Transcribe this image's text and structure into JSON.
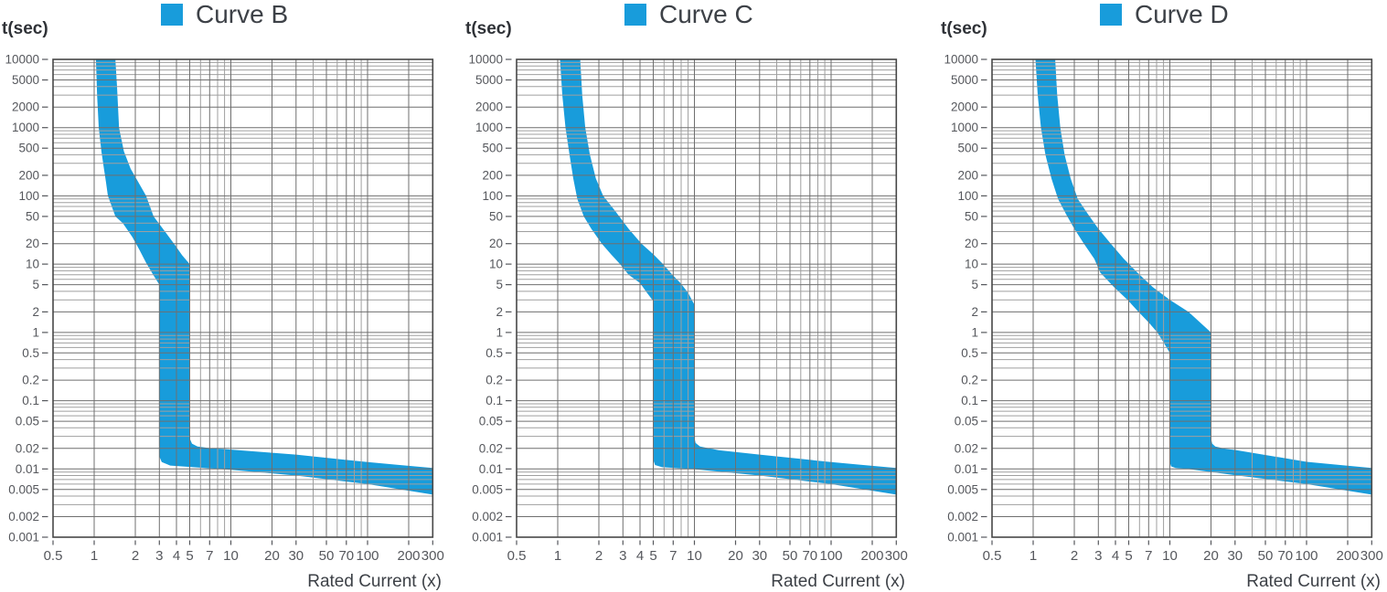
{
  "style": {
    "background": "#ffffff",
    "band_color": "#189CDB",
    "grid_minor": "#9f9f9f",
    "grid_major": "#6f6f6f",
    "axis_color": "#474747",
    "tick_color": "#55575c",
    "tick_text": "#55575c",
    "legend_text": "#3d4147",
    "ylabel_text": "#2f3237"
  },
  "chart_data": [
    {
      "type": "area",
      "title": "Curve B",
      "legend_label": "Curve B",
      "xlabel": "Rated Current (x)",
      "ylabel": "t(sec)",
      "x_scale": "log",
      "y_scale": "log",
      "xlim": [
        0.5,
        300
      ],
      "ylim": [
        0.001,
        10000
      ],
      "grid": "on (log decades with minor lines)",
      "x_tick_values": [
        0.5,
        1,
        2,
        3,
        4,
        5,
        7,
        10,
        20,
        30,
        50,
        70,
        100,
        200,
        300
      ],
      "x_tick_labels": [
        "0.5",
        "1",
        "2",
        "3",
        "4",
        "5",
        "7",
        "10",
        "20",
        "30",
        "50",
        "70",
        "100",
        "200",
        "300"
      ],
      "y_tick_values": [
        10000,
        5000,
        2000,
        1000,
        500,
        200,
        100,
        50,
        20,
        10,
        5,
        2,
        1,
        0.5,
        0.2,
        0.1,
        0.05,
        0.02,
        0.01,
        0.005,
        0.002,
        0.001
      ],
      "y_tick_labels": [
        "10000",
        "5000",
        "2000",
        "1000",
        "500",
        "200",
        "100",
        "50",
        "20",
        "10",
        "5",
        "2",
        "1",
        "0.5",
        "0.2",
        "0.1",
        "0.05",
        "0.02",
        "0.01",
        "0.005",
        "0.002",
        "0.001"
      ],
      "band_upper": [
        [
          1.43,
          10000
        ],
        [
          1.47,
          4000
        ],
        [
          1.52,
          1000
        ],
        [
          1.65,
          450
        ],
        [
          1.85,
          250
        ],
        [
          2.1,
          160
        ],
        [
          2.4,
          100
        ],
        [
          2.72,
          50
        ],
        [
          3.3,
          30
        ],
        [
          3.9,
          19
        ],
        [
          4.4,
          13.5
        ],
        [
          5.0,
          10
        ],
        [
          5.0,
          0.028
        ],
        [
          5.2,
          0.0235
        ],
        [
          5.7,
          0.0213
        ],
        [
          7.0,
          0.0202
        ],
        [
          10,
          0.0192
        ],
        [
          30,
          0.0162
        ],
        [
          100,
          0.0126
        ],
        [
          300,
          0.0103
        ]
      ],
      "band_lower": [
        [
          1.03,
          10000
        ],
        [
          1.05,
          3000
        ],
        [
          1.08,
          1000
        ],
        [
          1.13,
          450
        ],
        [
          1.18,
          250
        ],
        [
          1.22,
          160
        ],
        [
          1.26,
          100
        ],
        [
          1.43,
          50
        ],
        [
          1.62,
          40
        ],
        [
          1.9,
          25
        ],
        [
          2.15,
          16
        ],
        [
          2.4,
          10.5
        ],
        [
          2.7,
          7
        ],
        [
          3.0,
          5.0
        ],
        [
          3.0,
          0.0152
        ],
        [
          3.12,
          0.0126
        ],
        [
          3.6,
          0.0112
        ],
        [
          10,
          0.0097
        ],
        [
          30,
          0.008
        ],
        [
          100,
          0.006
        ],
        [
          300,
          0.0042
        ]
      ]
    },
    {
      "type": "area",
      "title": "Curve C",
      "legend_label": "Curve C",
      "xlabel": "Rated Current (x)",
      "ylabel": "t(sec)",
      "x_scale": "log",
      "y_scale": "log",
      "xlim": [
        0.5,
        300
      ],
      "ylim": [
        0.001,
        10000
      ],
      "grid": "on (log decades with minor lines)",
      "x_tick_values": [
        0.5,
        1,
        2,
        3,
        4,
        5,
        7,
        10,
        20,
        30,
        50,
        70,
        100,
        200,
        300
      ],
      "x_tick_labels": [
        "0.5",
        "1",
        "2",
        "3",
        "4",
        "5",
        "7",
        "10",
        "20",
        "30",
        "50",
        "70",
        "100",
        "200",
        "300"
      ],
      "y_tick_values": [
        10000,
        5000,
        2000,
        1000,
        500,
        200,
        100,
        50,
        20,
        10,
        5,
        2,
        1,
        0.5,
        0.2,
        0.1,
        0.05,
        0.02,
        0.01,
        0.005,
        0.002,
        0.001
      ],
      "y_tick_labels": [
        "10000",
        "5000",
        "2000",
        "1000",
        "500",
        "200",
        "100",
        "50",
        "20",
        "10",
        "5",
        "2",
        "1",
        "0.5",
        "0.2",
        "0.1",
        "0.05",
        "0.02",
        "0.01",
        "0.005",
        "0.002",
        "0.001"
      ],
      "band_upper": [
        [
          1.46,
          10000
        ],
        [
          1.51,
          3000
        ],
        [
          1.59,
          1000
        ],
        [
          1.72,
          400
        ],
        [
          1.9,
          180
        ],
        [
          2.15,
          100
        ],
        [
          2.6,
          62
        ],
        [
          3.3,
          33
        ],
        [
          4.1,
          20
        ],
        [
          5.0,
          14
        ],
        [
          5.9,
          10
        ],
        [
          6.9,
          7
        ],
        [
          7.9,
          5.3
        ],
        [
          9.0,
          3.8
        ],
        [
          10,
          2.55
        ],
        [
          10,
          0.029
        ],
        [
          10.2,
          0.024
        ],
        [
          11,
          0.0213
        ],
        [
          15,
          0.0188
        ],
        [
          30,
          0.0162
        ],
        [
          100,
          0.0126
        ],
        [
          300,
          0.0103
        ]
      ],
      "band_lower": [
        [
          1.04,
          10000
        ],
        [
          1.08,
          3000
        ],
        [
          1.14,
          1000
        ],
        [
          1.22,
          400
        ],
        [
          1.3,
          180
        ],
        [
          1.39,
          90
        ],
        [
          1.55,
          50
        ],
        [
          1.76,
          33
        ],
        [
          2.1,
          20
        ],
        [
          2.45,
          14
        ],
        [
          2.86,
          10
        ],
        [
          3.3,
          7
        ],
        [
          4.0,
          5.3
        ],
        [
          4.5,
          3.8
        ],
        [
          5.05,
          2.8
        ],
        [
          5.0,
          2.0
        ],
        [
          5.0,
          0.0135
        ],
        [
          5.15,
          0.0114
        ],
        [
          5.8,
          0.0106
        ],
        [
          10,
          0.0099
        ],
        [
          30,
          0.008
        ],
        [
          100,
          0.006
        ],
        [
          300,
          0.0042
        ]
      ]
    },
    {
      "type": "area",
      "title": "Curve D",
      "legend_label": "Curve D",
      "xlabel": "Rated Current (x)",
      "ylabel": "t(sec)",
      "x_scale": "log",
      "y_scale": "log",
      "xlim": [
        0.5,
        300
      ],
      "ylim": [
        0.001,
        10000
      ],
      "grid": "on (log decades with minor lines)",
      "x_tick_values": [
        0.5,
        1,
        2,
        3,
        4,
        5,
        7,
        10,
        20,
        30,
        50,
        70,
        100,
        200,
        300
      ],
      "x_tick_labels": [
        "0.5",
        "1",
        "2",
        "3",
        "4",
        "5",
        "7",
        "10",
        "20",
        "30",
        "50",
        "70",
        "100",
        "200",
        "300"
      ],
      "y_tick_values": [
        10000,
        5000,
        2000,
        1000,
        500,
        200,
        100,
        50,
        20,
        10,
        5,
        2,
        1,
        0.5,
        0.2,
        0.1,
        0.05,
        0.02,
        0.01,
        0.005,
        0.002,
        0.001
      ],
      "y_tick_labels": [
        "10000",
        "5000",
        "2000",
        "1000",
        "500",
        "200",
        "100",
        "50",
        "20",
        "10",
        "5",
        "2",
        "1",
        "0.5",
        "0.2",
        "0.1",
        "0.05",
        "0.02",
        "0.01",
        "0.005",
        "0.002",
        "0.001"
      ],
      "band_upper": [
        [
          1.45,
          10000
        ],
        [
          1.5,
          3000
        ],
        [
          1.58,
          1000
        ],
        [
          1.7,
          400
        ],
        [
          1.88,
          180
        ],
        [
          2.12,
          90
        ],
        [
          2.5,
          55
        ],
        [
          3.0,
          33
        ],
        [
          3.7,
          20
        ],
        [
          4.6,
          12
        ],
        [
          5.8,
          7.5
        ],
        [
          7.5,
          4.6
        ],
        [
          10,
          3.0
        ],
        [
          13.7,
          2.0
        ],
        [
          20,
          1.0
        ],
        [
          20,
          0.028
        ],
        [
          20.4,
          0.0235
        ],
        [
          21.5,
          0.0213
        ],
        [
          26,
          0.0196
        ],
        [
          30,
          0.019
        ],
        [
          100,
          0.0127
        ],
        [
          300,
          0.0103
        ]
      ],
      "band_lower": [
        [
          1.04,
          10000
        ],
        [
          1.08,
          3000
        ],
        [
          1.14,
          1000
        ],
        [
          1.23,
          400
        ],
        [
          1.36,
          180
        ],
        [
          1.52,
          90
        ],
        [
          1.73,
          55
        ],
        [
          2.0,
          33
        ],
        [
          2.35,
          20
        ],
        [
          2.8,
          12
        ],
        [
          3.1,
          7.5
        ],
        [
          3.9,
          4.6
        ],
        [
          4.9,
          3.0
        ],
        [
          5.9,
          2.0
        ],
        [
          7.0,
          1.4
        ],
        [
          8.1,
          1.0
        ],
        [
          9.2,
          0.66
        ],
        [
          10,
          0.5
        ],
        [
          10,
          0.0125
        ],
        [
          10.2,
          0.0109
        ],
        [
          11,
          0.0103
        ],
        [
          14,
          0.0099
        ],
        [
          30,
          0.0081
        ],
        [
          100,
          0.006
        ],
        [
          300,
          0.0042
        ]
      ]
    }
  ]
}
